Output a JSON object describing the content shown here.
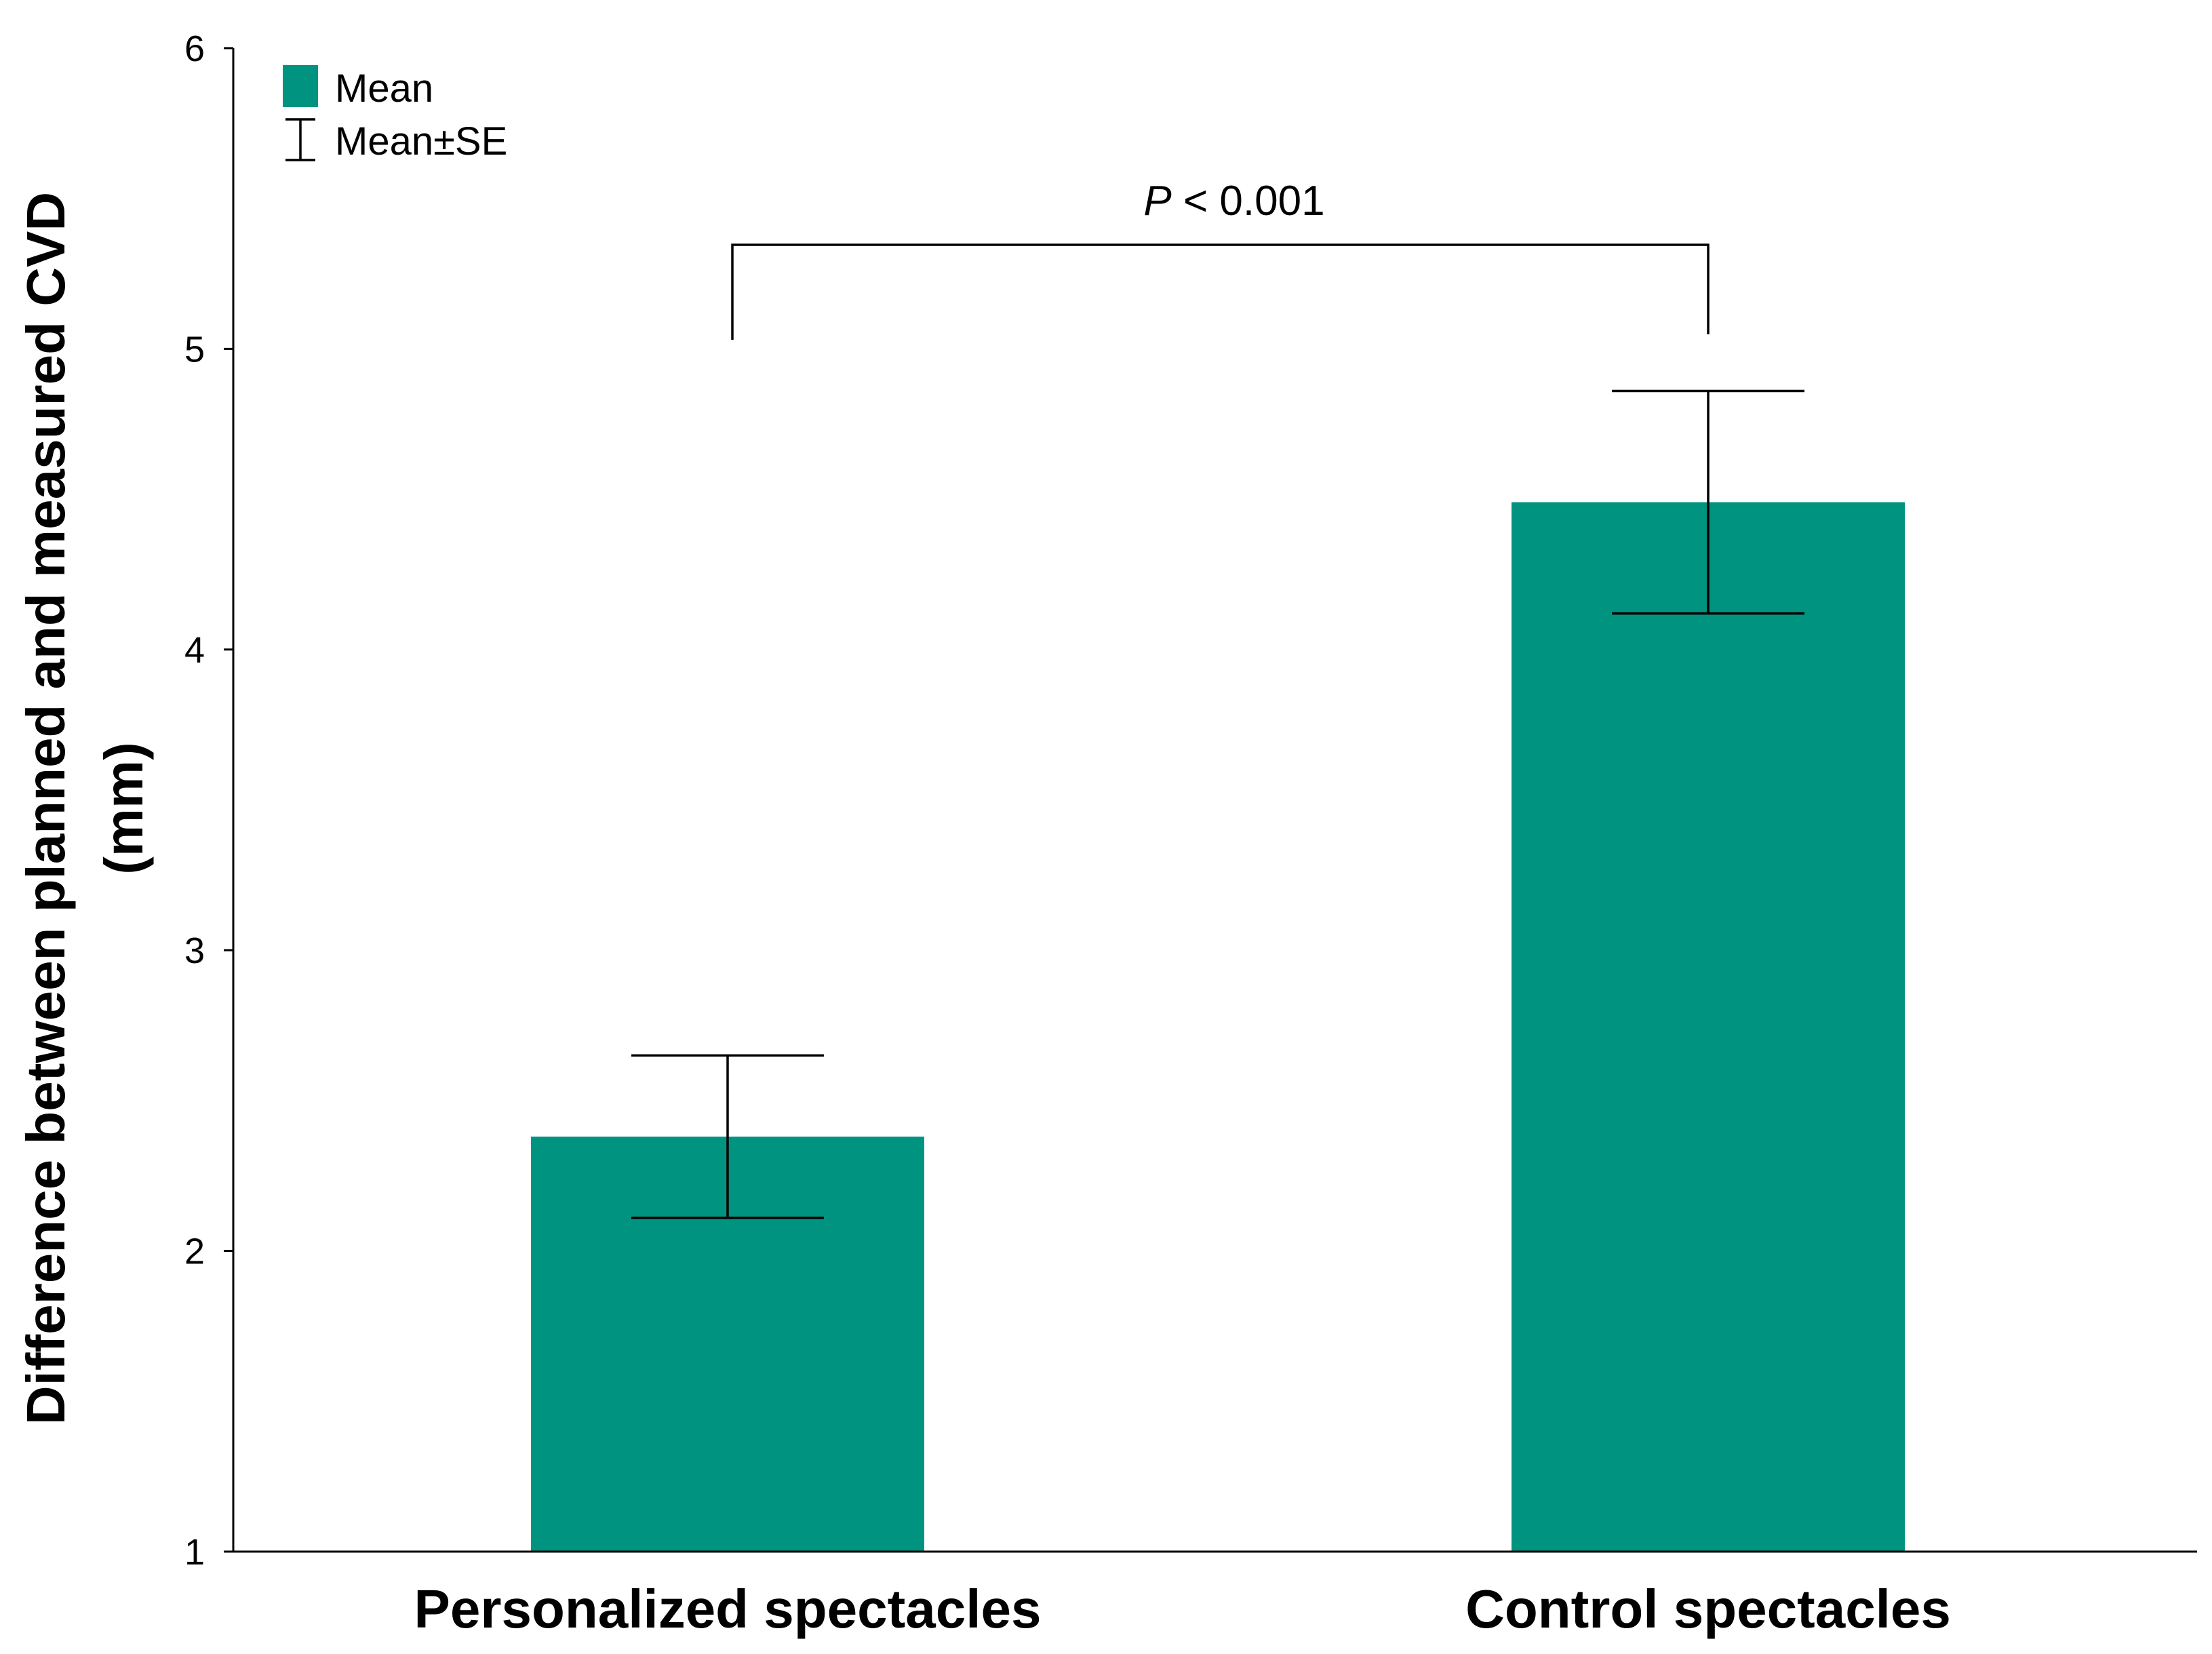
{
  "chart_data": {
    "type": "bar",
    "categories": [
      "Personalized spectacles",
      "Control spectacles"
    ],
    "series": [
      {
        "name": "Mean",
        "values": [
          2.38,
          4.49
        ]
      }
    ],
    "error_bars": {
      "name": "Mean±SE",
      "lower": [
        2.11,
        4.12
      ],
      "upper": [
        2.65,
        4.86
      ]
    },
    "title": "",
    "xlabel": "",
    "ylabel": "Difference between planned and measured CVD (mm)",
    "ylabel_line1": "Difference between planned and measured CVD",
    "ylabel_line2": "(mm)",
    "ylim": [
      1,
      6
    ],
    "yticks": [
      "1",
      "2",
      "3",
      "4",
      "5",
      "6"
    ],
    "grid": false,
    "legend": {
      "position": "top-left",
      "entries": [
        "Mean",
        "Mean±SE"
      ]
    },
    "annotation": {
      "italic": "P",
      "text": " < 0.001",
      "between": [
        0,
        1
      ]
    },
    "colors": {
      "bar": "#009480",
      "axis": "#000000"
    }
  }
}
